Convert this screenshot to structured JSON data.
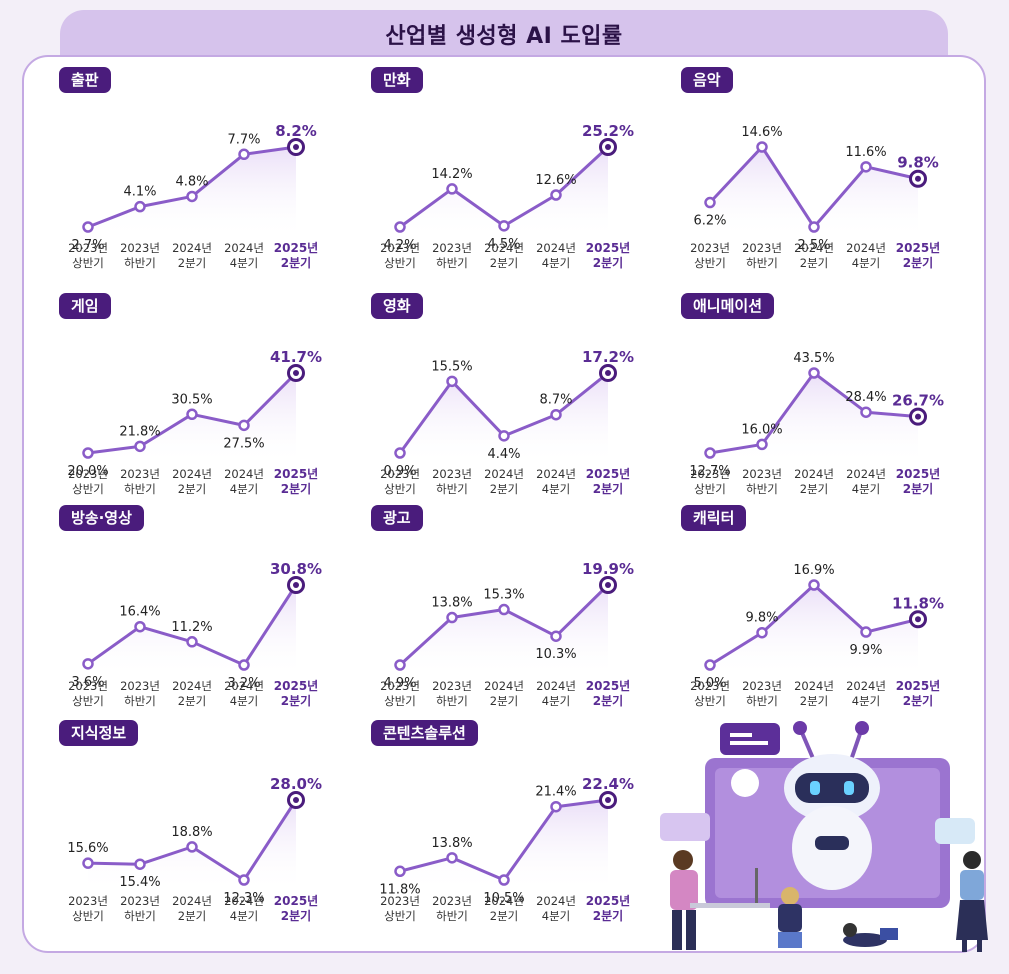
{
  "title": "산업별 생성형 AI 도입률",
  "colors": {
    "line": "#8a5cc8",
    "dark": "#4a1c7c",
    "highlight": "#5a2c94",
    "fill": "#e9ddf7",
    "label": "#222222"
  },
  "x_labels": [
    [
      "2023년",
      "상반기"
    ],
    [
      "2023년",
      "하반기"
    ],
    [
      "2024년",
      "2분기"
    ],
    [
      "2024년",
      "4분기"
    ],
    [
      "2025년",
      "2분기"
    ]
  ],
  "chart_data": [
    {
      "type": "line",
      "title": "출판",
      "categories": [
        "2023년 상반기",
        "2023년 하반기",
        "2024년 2분기",
        "2024년 4분기",
        "2025년 2분기"
      ],
      "values": [
        2.7,
        4.1,
        4.8,
        7.7,
        8.2
      ],
      "labels": [
        "2.7%",
        "4.1%",
        "4.8%",
        "7.7%",
        "8.2%"
      ]
    },
    {
      "type": "line",
      "title": "만화",
      "categories": [
        "2023년 상반기",
        "2023년 하반기",
        "2024년 2분기",
        "2024년 4분기",
        "2025년 2분기"
      ],
      "values": [
        4.2,
        14.2,
        4.5,
        12.6,
        25.2
      ],
      "labels": [
        "4.2%",
        "14.2%",
        "4.5%",
        "12.6%",
        "25.2%"
      ]
    },
    {
      "type": "line",
      "title": "음악",
      "categories": [
        "2023년 상반기",
        "2023년 하반기",
        "2024년 2분기",
        "2024년 4분기",
        "2025년 2분기"
      ],
      "values": [
        6.2,
        14.6,
        2.5,
        11.6,
        9.8
      ],
      "labels": [
        "6.2%",
        "14.6%",
        "2.5%",
        "11.6%",
        "9.8%"
      ]
    },
    {
      "type": "line",
      "title": "게임",
      "categories": [
        "2023년 상반기",
        "2023년 하반기",
        "2024년 2분기",
        "2024년 4분기",
        "2025년 2분기"
      ],
      "values": [
        20.0,
        21.8,
        30.5,
        27.5,
        41.7
      ],
      "labels": [
        "20.0%",
        "21.8%",
        "30.5%",
        "27.5%",
        "41.7%"
      ]
    },
    {
      "type": "line",
      "title": "영화",
      "categories": [
        "2023년 상반기",
        "2023년 하반기",
        "2024년 2분기",
        "2024년 4분기",
        "2025년 2분기"
      ],
      "values": [
        0.9,
        15.5,
        4.4,
        8.7,
        17.2
      ],
      "labels": [
        "0.9%",
        "15.5%",
        "4.4%",
        "8.7%",
        "17.2%"
      ]
    },
    {
      "type": "line",
      "title": "애니메이션",
      "categories": [
        "2023년 상반기",
        "2023년 하반기",
        "2024년 2분기",
        "2024년 4분기",
        "2025년 2분기"
      ],
      "values": [
        12.7,
        16.0,
        43.5,
        28.4,
        26.7
      ],
      "labels": [
        "12.7%",
        "16.0%",
        "43.5%",
        "28.4%",
        "26.7%"
      ]
    },
    {
      "type": "line",
      "title": "방송·영상",
      "categories": [
        "2023년 상반기",
        "2023년 하반기",
        "2024년 2분기",
        "2024년 4분기",
        "2025년 2분기"
      ],
      "values": [
        3.6,
        16.4,
        11.2,
        3.2,
        30.8
      ],
      "labels": [
        "3.6%",
        "16.4%",
        "11.2%",
        "3.2%",
        "30.8%"
      ]
    },
    {
      "type": "line",
      "title": "광고",
      "categories": [
        "2023년 상반기",
        "2023년 하반기",
        "2024년 2분기",
        "2024년 4분기",
        "2025년 2분기"
      ],
      "values": [
        4.9,
        13.8,
        15.3,
        10.3,
        19.9
      ],
      "labels": [
        "4.9%",
        "13.8%",
        "15.3%",
        "10.3%",
        "19.9%"
      ]
    },
    {
      "type": "line",
      "title": "캐릭터",
      "categories": [
        "2023년 상반기",
        "2023년 하반기",
        "2024년 2분기",
        "2024년 4분기",
        "2025년 2분기"
      ],
      "values": [
        5.0,
        9.8,
        16.9,
        9.9,
        11.8
      ],
      "labels": [
        "5.0%",
        "9.8%",
        "16.9%",
        "9.9%",
        "11.8%"
      ]
    },
    {
      "type": "line",
      "title": "지식정보",
      "categories": [
        "2023년 상반기",
        "2023년 하반기",
        "2024년 2분기",
        "2024년 4분기",
        "2025년 2분기"
      ],
      "values": [
        15.6,
        15.4,
        18.8,
        12.3,
        28.0
      ],
      "labels": [
        "15.6%",
        "15.4%",
        "18.8%",
        "12.3%",
        "28.0%"
      ]
    },
    {
      "type": "line",
      "title": "콘텐츠솔루션",
      "categories": [
        "2023년 상반기",
        "2023년 하반기",
        "2024년 2분기",
        "2024년 4분기",
        "2025년 2분기"
      ],
      "values": [
        11.8,
        13.8,
        10.5,
        21.4,
        22.4
      ],
      "labels": [
        "11.8%",
        "13.8%",
        "10.5%",
        "21.4%",
        "22.4%"
      ]
    }
  ]
}
